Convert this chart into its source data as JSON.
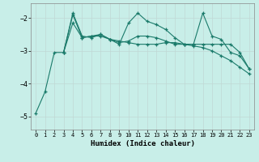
{
  "title": "",
  "xlabel": "Humidex (Indice chaleur)",
  "background_color": "#c8eee8",
  "grid_color": "#b0d0cc",
  "grid_color_major": "#aaaaaa",
  "line_color": "#1a7a6a",
  "xlim": [
    -0.5,
    23.5
  ],
  "ylim": [
    -5.4,
    -1.55
  ],
  "yticks": [
    -5,
    -4,
    -3,
    -2
  ],
  "xticks": [
    0,
    1,
    2,
    3,
    4,
    5,
    6,
    7,
    8,
    9,
    10,
    11,
    12,
    13,
    14,
    15,
    16,
    17,
    18,
    19,
    20,
    21,
    22,
    23
  ],
  "lines": [
    {
      "x": [
        0,
        1,
        2,
        3,
        4,
        5,
        6,
        7,
        8,
        9,
        10,
        11,
        12,
        13,
        14,
        15,
        16,
        17,
        18,
        19,
        20,
        21,
        22,
        23
      ],
      "y": [
        -4.9,
        -4.25,
        -3.05,
        -3.05,
        -2.15,
        -2.6,
        -2.55,
        -2.55,
        -2.65,
        -2.7,
        -2.75,
        -2.8,
        -2.8,
        -2.8,
        -2.75,
        -2.75,
        -2.8,
        -2.85,
        -2.9,
        -3.0,
        -3.15,
        -3.3,
        -3.5,
        -3.7
      ]
    },
    {
      "x": [
        3,
        4,
        5,
        6,
        7,
        8,
        9,
        10,
        11,
        12,
        13,
        14,
        15,
        16,
        17,
        18,
        19,
        20,
        21,
        22,
        23
      ],
      "y": [
        -3.05,
        -1.85,
        -2.55,
        -2.6,
        -2.5,
        -2.65,
        -2.8,
        -2.15,
        -1.85,
        -2.1,
        -2.2,
        -2.35,
        -2.6,
        -2.8,
        -2.8,
        -1.85,
        -2.55,
        -2.65,
        -3.05,
        -3.15,
        -3.55
      ]
    },
    {
      "x": [
        3,
        4,
        5,
        6,
        7,
        8,
        9,
        10,
        11,
        12,
        13,
        14,
        15,
        16,
        17,
        18,
        19,
        20,
        21,
        22,
        23
      ],
      "y": [
        -3.05,
        -1.9,
        -2.6,
        -2.55,
        -2.5,
        -2.65,
        -2.75,
        -2.7,
        -2.55,
        -2.55,
        -2.6,
        -2.7,
        -2.8,
        -2.8,
        -2.8,
        -2.8,
        -2.8,
        -2.8,
        -2.8,
        -3.05,
        -3.55
      ]
    }
  ]
}
